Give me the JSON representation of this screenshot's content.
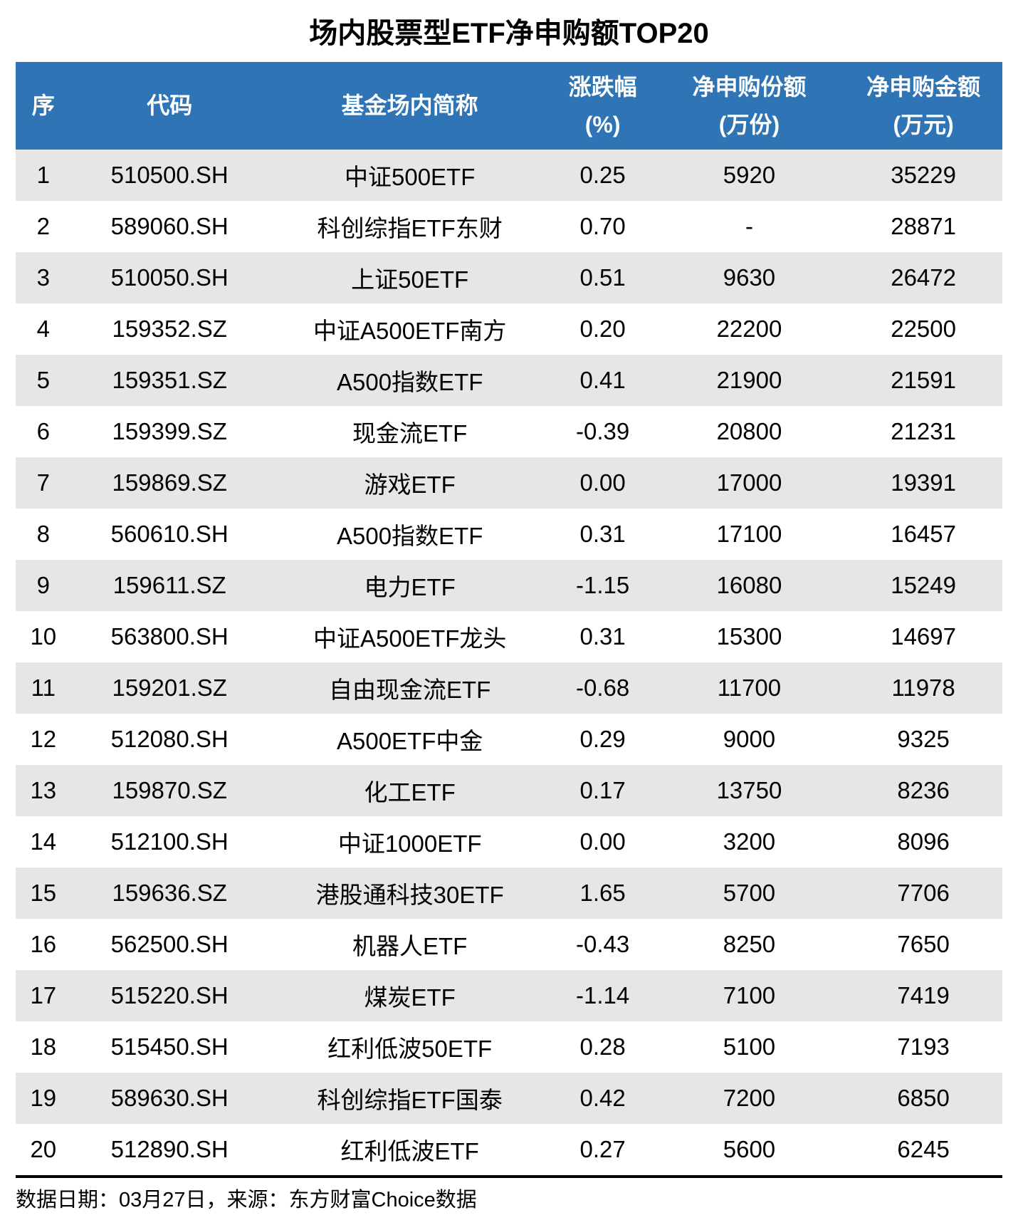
{
  "title": "场内股票型ETF净申购额TOP20",
  "chart_data": {
    "type": "table",
    "title": "场内股票型ETF净申购额TOP20",
    "columns": [
      {
        "label": "序",
        "unit": ""
      },
      {
        "label": "代码",
        "unit": ""
      },
      {
        "label": "基金场内简称",
        "unit": ""
      },
      {
        "label": "涨跌幅",
        "unit": "(%)"
      },
      {
        "label": "净申购份额",
        "unit": "(万份)"
      },
      {
        "label": "净申购金额",
        "unit": "(万元)"
      }
    ],
    "rows": [
      [
        "1",
        "510500.SH",
        "中证500ETF",
        "0.25",
        "5920",
        "35229"
      ],
      [
        "2",
        "589060.SH",
        "科创综指ETF东财",
        "0.70",
        "-",
        "28871"
      ],
      [
        "3",
        "510050.SH",
        "上证50ETF",
        "0.51",
        "9630",
        "26472"
      ],
      [
        "4",
        "159352.SZ",
        "中证A500ETF南方",
        "0.20",
        "22200",
        "22500"
      ],
      [
        "5",
        "159351.SZ",
        "A500指数ETF",
        "0.41",
        "21900",
        "21591"
      ],
      [
        "6",
        "159399.SZ",
        "现金流ETF",
        "-0.39",
        "20800",
        "21231"
      ],
      [
        "7",
        "159869.SZ",
        "游戏ETF",
        "0.00",
        "17000",
        "19391"
      ],
      [
        "8",
        "560610.SH",
        "A500指数ETF",
        "0.31",
        "17100",
        "16457"
      ],
      [
        "9",
        "159611.SZ",
        "电力ETF",
        "-1.15",
        "16080",
        "15249"
      ],
      [
        "10",
        "563800.SH",
        "中证A500ETF龙头",
        "0.31",
        "15300",
        "14697"
      ],
      [
        "11",
        "159201.SZ",
        "自由现金流ETF",
        "-0.68",
        "11700",
        "11978"
      ],
      [
        "12",
        "512080.SH",
        "A500ETF中金",
        "0.29",
        "9000",
        "9325"
      ],
      [
        "13",
        "159870.SZ",
        "化工ETF",
        "0.17",
        "13750",
        "8236"
      ],
      [
        "14",
        "512100.SH",
        "中证1000ETF",
        "0.00",
        "3200",
        "8096"
      ],
      [
        "15",
        "159636.SZ",
        "港股通科技30ETF",
        "1.65",
        "5700",
        "7706"
      ],
      [
        "16",
        "562500.SH",
        "机器人ETF",
        "-0.43",
        "8250",
        "7650"
      ],
      [
        "17",
        "515220.SH",
        "煤炭ETF",
        "-1.14",
        "7100",
        "7419"
      ],
      [
        "18",
        "515450.SH",
        "红利低波50ETF",
        "0.28",
        "5100",
        "7193"
      ],
      [
        "19",
        "589630.SH",
        "科创综指ETF国泰",
        "0.42",
        "7200",
        "6850"
      ],
      [
        "20",
        "512890.SH",
        "红利低波ETF",
        "0.27",
        "5600",
        "6245"
      ]
    ],
    "layout": {
      "header_rows_shaded": true,
      "alternating_rows": "odd rows gray, even rows white",
      "gridlines": false,
      "legend": "none"
    }
  },
  "footer": {
    "note": "数据日期：03月27日，来源：东方财富Choice数据"
  },
  "colors": {
    "header_bg": "#2F74B5",
    "header_text": "#FFFFFF",
    "row_alt_bg": "#E6E6E6",
    "row_bg": "#FFFFFF",
    "text": "#000000",
    "divider": "#000000"
  }
}
